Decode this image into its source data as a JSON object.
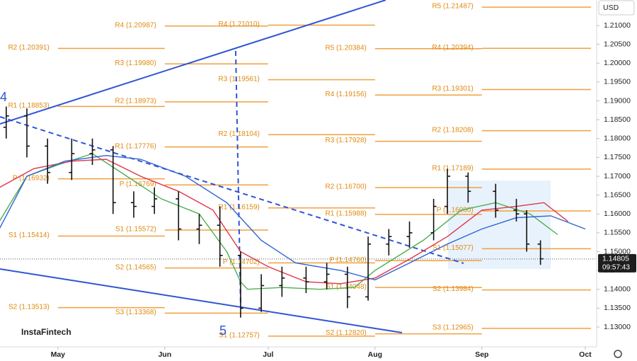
{
  "chart_data": {
    "type": "ohlc",
    "currency": "USD",
    "brand": "InstaFintech",
    "countdown": "09:57:43",
    "last_price": 1.14805,
    "wave_labels": [
      "4",
      "5"
    ],
    "color": "#111111",
    "x": [
      106,
      112,
      118,
      125,
      131,
      137,
      143,
      149,
      156,
      162,
      168,
      174,
      180,
      186,
      193,
      199,
      205,
      211,
      217,
      223,
      230,
      234,
      240,
      248,
      254,
      257,
      261
    ],
    "open": [
      1.183,
      1.186,
      1.178,
      1.171,
      1.176,
      1.177,
      1.163,
      1.162,
      1.164,
      1.156,
      1.157,
      1.149,
      1.135,
      1.141,
      1.143,
      1.142,
      1.144,
      1.138,
      1.152,
      1.154,
      1.155,
      1.162,
      1.17,
      1.166,
      1.161,
      1.16,
      1.152
    ],
    "high": [
      1.1885,
      1.188,
      1.18,
      1.18,
      1.18,
      1.178,
      1.166,
      1.167,
      1.166,
      1.16,
      1.162,
      1.15,
      1.144,
      1.146,
      1.146,
      1.147,
      1.146,
      1.154,
      1.156,
      1.158,
      1.164,
      1.172,
      1.171,
      1.168,
      1.164,
      1.161,
      1.153
    ],
    "low": [
      1.18,
      1.175,
      1.168,
      1.169,
      1.173,
      1.16,
      1.159,
      1.16,
      1.153,
      1.152,
      1.146,
      1.1325,
      1.134,
      1.138,
      1.139,
      1.14,
      1.135,
      1.137,
      1.149,
      1.151,
      1.153,
      1.16,
      1.163,
      1.159,
      1.158,
      1.15,
      1.1465
    ],
    "close": [
      1.186,
      1.178,
      1.171,
      1.176,
      1.177,
      1.163,
      1.162,
      1.164,
      1.156,
      1.157,
      1.149,
      1.135,
      1.141,
      1.143,
      1.142,
      1.144,
      1.138,
      1.152,
      1.154,
      1.155,
      1.162,
      1.17,
      1.166,
      1.161,
      1.16,
      1.152,
      1.1481
    ],
    "moving_averages": [
      {
        "color": "#4caf50",
        "x": [
          104,
          112,
          121,
          131,
          141,
          151,
          162,
          170,
          174,
          176,
          186,
          197,
          207,
          213,
          227,
          238,
          248,
          258,
          266
        ],
        "values": [
          1.158,
          1.17,
          1.173,
          1.176,
          1.17,
          1.164,
          1.16,
          1.15,
          1.142,
          1.14,
          1.1405,
          1.14,
          1.1405,
          1.145,
          1.153,
          1.161,
          1.163,
          1.16,
          1.1545
        ]
      },
      {
        "color": "#e0344a",
        "x": [
          104,
          114,
          125,
          135,
          145,
          156,
          166,
          174,
          182,
          193,
          203,
          213,
          223,
          234,
          244,
          254,
          262,
          269
        ],
        "values": [
          1.167,
          1.172,
          1.174,
          1.1745,
          1.17,
          1.166,
          1.161,
          1.15,
          1.146,
          1.142,
          1.1415,
          1.143,
          1.148,
          1.154,
          1.161,
          1.162,
          1.163,
          1.158
        ]
      },
      {
        "color": "#2f62d8",
        "x": [
          104,
          112,
          123,
          135,
          145,
          158,
          170,
          180,
          190,
          203,
          213,
          223,
          234,
          244,
          254,
          264,
          274
        ],
        "values": [
          1.156,
          1.17,
          1.174,
          1.1755,
          1.1745,
          1.17,
          1.163,
          1.153,
          1.147,
          1.145,
          1.1425,
          1.147,
          1.152,
          1.156,
          1.159,
          1.1595,
          1.156
        ]
      }
    ],
    "level_color": "#f0a040",
    "levels": [
      {
        "label": "R2 (1.20391)",
        "value": 1.20391,
        "x": [
          121,
          152
        ]
      },
      {
        "label": "R1 (1.18853)",
        "value": 1.18853,
        "x": [
          121,
          152
        ]
      },
      {
        "label": "P (1.16932)",
        "value": 1.16932,
        "x": [
          121,
          152
        ]
      },
      {
        "label": "S1 (1.15414)",
        "value": 1.15414,
        "x": [
          121,
          152
        ]
      },
      {
        "label": "S2 (1.13513)",
        "value": 1.13513,
        "x": [
          121,
          152
        ]
      },
      {
        "label": "R4 (1.20987)",
        "value": 1.20987,
        "x": [
          152,
          182
        ]
      },
      {
        "label": "R3 (1.19980)",
        "value": 1.1998,
        "x": [
          152,
          182
        ]
      },
      {
        "label": "R2 (1.18973)",
        "value": 1.18973,
        "x": [
          152,
          182
        ]
      },
      {
        "label": "R1 (1.17776)",
        "value": 1.17776,
        "x": [
          152,
          182
        ]
      },
      {
        "label": "P (1.16769)",
        "value": 1.16769,
        "x": [
          152,
          182
        ]
      },
      {
        "label": "S1 (1.15572)",
        "value": 1.15572,
        "x": [
          152,
          182
        ]
      },
      {
        "label": "S2 (1.14565)",
        "value": 1.14565,
        "x": [
          152,
          182
        ]
      },
      {
        "label": "S3 (1.13368)",
        "value": 1.13368,
        "x": [
          152,
          182
        ]
      },
      {
        "label": "R4 (1.21010)",
        "value": 1.2101,
        "x": [
          182,
          213
        ]
      },
      {
        "label": "R3 (1.19561)",
        "value": 1.19561,
        "x": [
          182,
          213
        ]
      },
      {
        "label": "R2 (1.18104)",
        "value": 1.18104,
        "x": [
          182,
          213
        ]
      },
      {
        "label": "R1 (1.16159)",
        "value": 1.16159,
        "x": [
          182,
          213
        ]
      },
      {
        "label": "P (1.14702)",
        "value": 1.14702,
        "x": [
          182,
          213
        ]
      },
      {
        "label": "S1 (1.12757)",
        "value": 1.12757,
        "x": [
          182,
          213
        ]
      },
      {
        "label": "R5 (1.20384)",
        "value": 1.20384,
        "x": [
          213,
          244
        ]
      },
      {
        "label": "R4 (1.19156)",
        "value": 1.19156,
        "x": [
          213,
          244
        ]
      },
      {
        "label": "R3 (1.17928)",
        "value": 1.17928,
        "x": [
          213,
          244
        ]
      },
      {
        "label": "R2 (1.16700)",
        "value": 1.167,
        "x": [
          213,
          244
        ]
      },
      {
        "label": "R1 (1.15988)",
        "value": 1.15988,
        "x": [
          213,
          244
        ]
      },
      {
        "label": "P (1.14760)",
        "value": 1.1476,
        "x": [
          213,
          244
        ]
      },
      {
        "label": "S1 (1.14048)",
        "value": 1.14048,
        "x": [
          213,
          244
        ]
      },
      {
        "label": "S2 (1.12820)",
        "value": 1.1282,
        "x": [
          213,
          244
        ]
      },
      {
        "label": "R5 (1.21487)",
        "value": 1.21487,
        "x": [
          244,
          276
        ]
      },
      {
        "label": "R4 (1.20394)",
        "value": 1.20394,
        "x": [
          244,
          276
        ]
      },
      {
        "label": "R3 (1.19301)",
        "value": 1.19301,
        "x": [
          244,
          276
        ]
      },
      {
        "label": "R2 (1.18208)",
        "value": 1.18208,
        "x": [
          244,
          276
        ]
      },
      {
        "label": "R1 (1.17189)",
        "value": 1.17189,
        "x": [
          244,
          276
        ]
      },
      {
        "label": "P (1.16080)",
        "value": 1.1608,
        "x": [
          244,
          276
        ]
      },
      {
        "label": "S1 (1.15077)",
        "value": 1.15077,
        "x": [
          244,
          276
        ]
      },
      {
        "label": "S2 (1.13984)",
        "value": 1.13984,
        "x": [
          244,
          276
        ]
      },
      {
        "label": "S3 (1.12965)",
        "value": 1.12965,
        "x": [
          244,
          276
        ]
      }
    ],
    "xlim": [
      104.2,
      277.3
    ],
    "xticks": [
      {
        "value": 121,
        "label": "May"
      },
      {
        "value": 152,
        "label": "Jun"
      },
      {
        "value": 182,
        "label": "Jul"
      },
      {
        "value": 213,
        "label": "Aug"
      },
      {
        "value": 244,
        "label": "Sep"
      },
      {
        "value": 274,
        "label": "Oct"
      }
    ],
    "ylim": [
      1.12474,
      1.21676
    ],
    "yticks": [
      {
        "value": 1.13,
        "label": "1.13000"
      },
      {
        "value": 1.135,
        "label": "1.13500"
      },
      {
        "value": 1.14,
        "label": "1.14000"
      },
      {
        "value": 1.145,
        "label": "1.14500"
      },
      {
        "value": 1.15,
        "label": "1.15000"
      },
      {
        "value": 1.155,
        "label": "1.15500"
      },
      {
        "value": 1.16,
        "label": "1.16000"
      },
      {
        "value": 1.165,
        "label": "1.16500"
      },
      {
        "value": 1.17,
        "label": "1.17000"
      },
      {
        "value": 1.175,
        "label": "1.17500"
      },
      {
        "value": 1.18,
        "label": "1.18000"
      },
      {
        "value": 1.185,
        "label": "1.18500"
      },
      {
        "value": 1.19,
        "label": "1.19000"
      },
      {
        "value": 1.195,
        "label": "1.19500"
      },
      {
        "value": 1.2,
        "label": "1.20000"
      },
      {
        "value": 1.205,
        "label": "1.20500"
      },
      {
        "value": 1.21,
        "label": "1.21000"
      }
    ]
  }
}
